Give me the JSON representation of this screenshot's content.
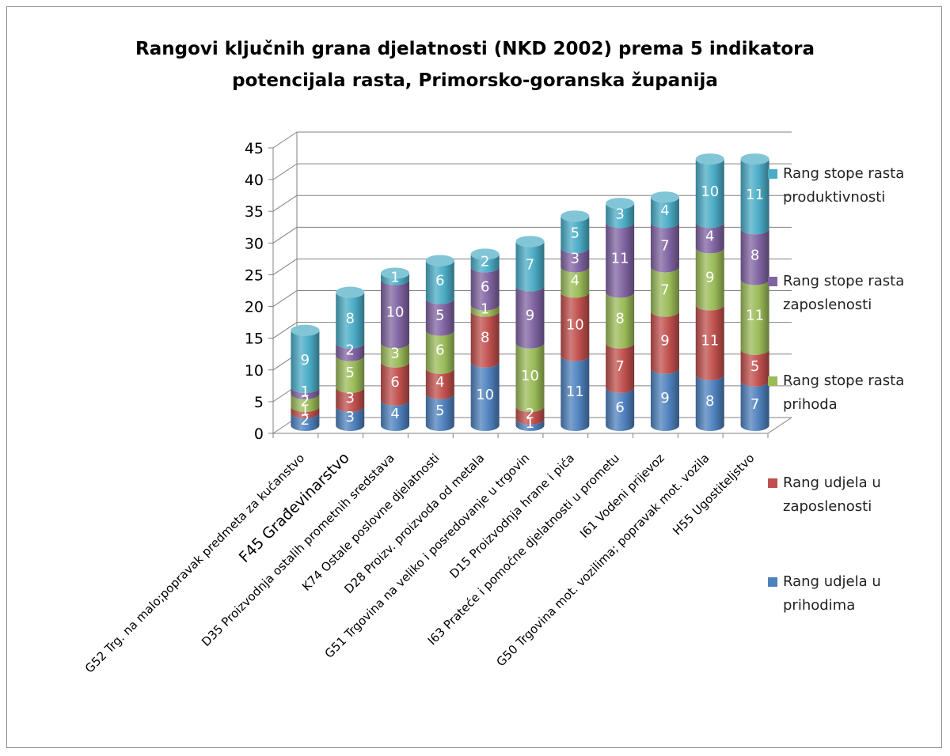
{
  "chart_data": {
    "type": "bar",
    "stacked": true,
    "three_d": true,
    "title_lines": [
      "Rangovi ključnih grana djelatnosti (NKD 2002) prema 5 indikatora",
      "potencijala rasta, Primorsko-goranska županija"
    ],
    "categories": [
      "G52 Trg. na malo;popravak predmeta za kućanstvo",
      "F45 Građevinarstvo",
      "D35 Proizvodnja ostalih prometnih sredstava",
      "K74 Ostale poslovne djelatnosti",
      "D28 Proizv. proizvoda od metala",
      "G51 Trgovina na veliko i posredovanje u trgovin",
      "D15 Proizvodnja hrane i pića",
      "I63 Prateće i pomoćne djelatnosti u prometu",
      "I61 Vodeni prijevoz",
      "G50 Trgovina mot. vozilima; popravak mot. vozila",
      "H55 Ugostiteljstvo"
    ],
    "series": [
      {
        "name": "Rang udjela u prihodima",
        "color": "#4f81bd",
        "values": [
          2,
          3,
          4,
          5,
          10,
          1,
          11,
          6,
          9,
          8,
          7
        ]
      },
      {
        "name": "Rang udjela u zaposlenosti",
        "color": "#c0504d",
        "values": [
          1,
          3,
          6,
          4,
          8,
          2,
          10,
          7,
          9,
          11,
          5
        ]
      },
      {
        "name": "Rang stope rasta prihoda",
        "color": "#9bbb59",
        "values": [
          2,
          5,
          3,
          6,
          1,
          10,
          4,
          8,
          7,
          9,
          11
        ]
      },
      {
        "name": "Rang stope rasta zaposlenosti",
        "color": "#8064a2",
        "values": [
          1,
          2,
          10,
          5,
          6,
          9,
          3,
          11,
          7,
          4,
          8
        ]
      },
      {
        "name": "Rang stope rasta produktivnosti",
        "color": "#4bacc6",
        "values": [
          9,
          8,
          1,
          6,
          2,
          7,
          5,
          3,
          4,
          10,
          11
        ]
      }
    ],
    "legend_order": [
      4,
      3,
      2,
      1,
      0
    ],
    "legend_lines": [
      [
        "Rang stope rasta",
        "produktivnosti"
      ],
      [
        "Rang stope rasta",
        "zaposlenosti"
      ],
      [
        "Rang stope rasta",
        "prihoda"
      ],
      [
        "Rang udjela u",
        "zaposlenosti"
      ],
      [
        "Rang udjela u",
        "prihodima"
      ]
    ],
    "ylim": [
      0,
      45
    ],
    "yticks": [
      0,
      5,
      10,
      15,
      20,
      25,
      30,
      35,
      40,
      45
    ],
    "grid": true,
    "legend_position": "right"
  }
}
